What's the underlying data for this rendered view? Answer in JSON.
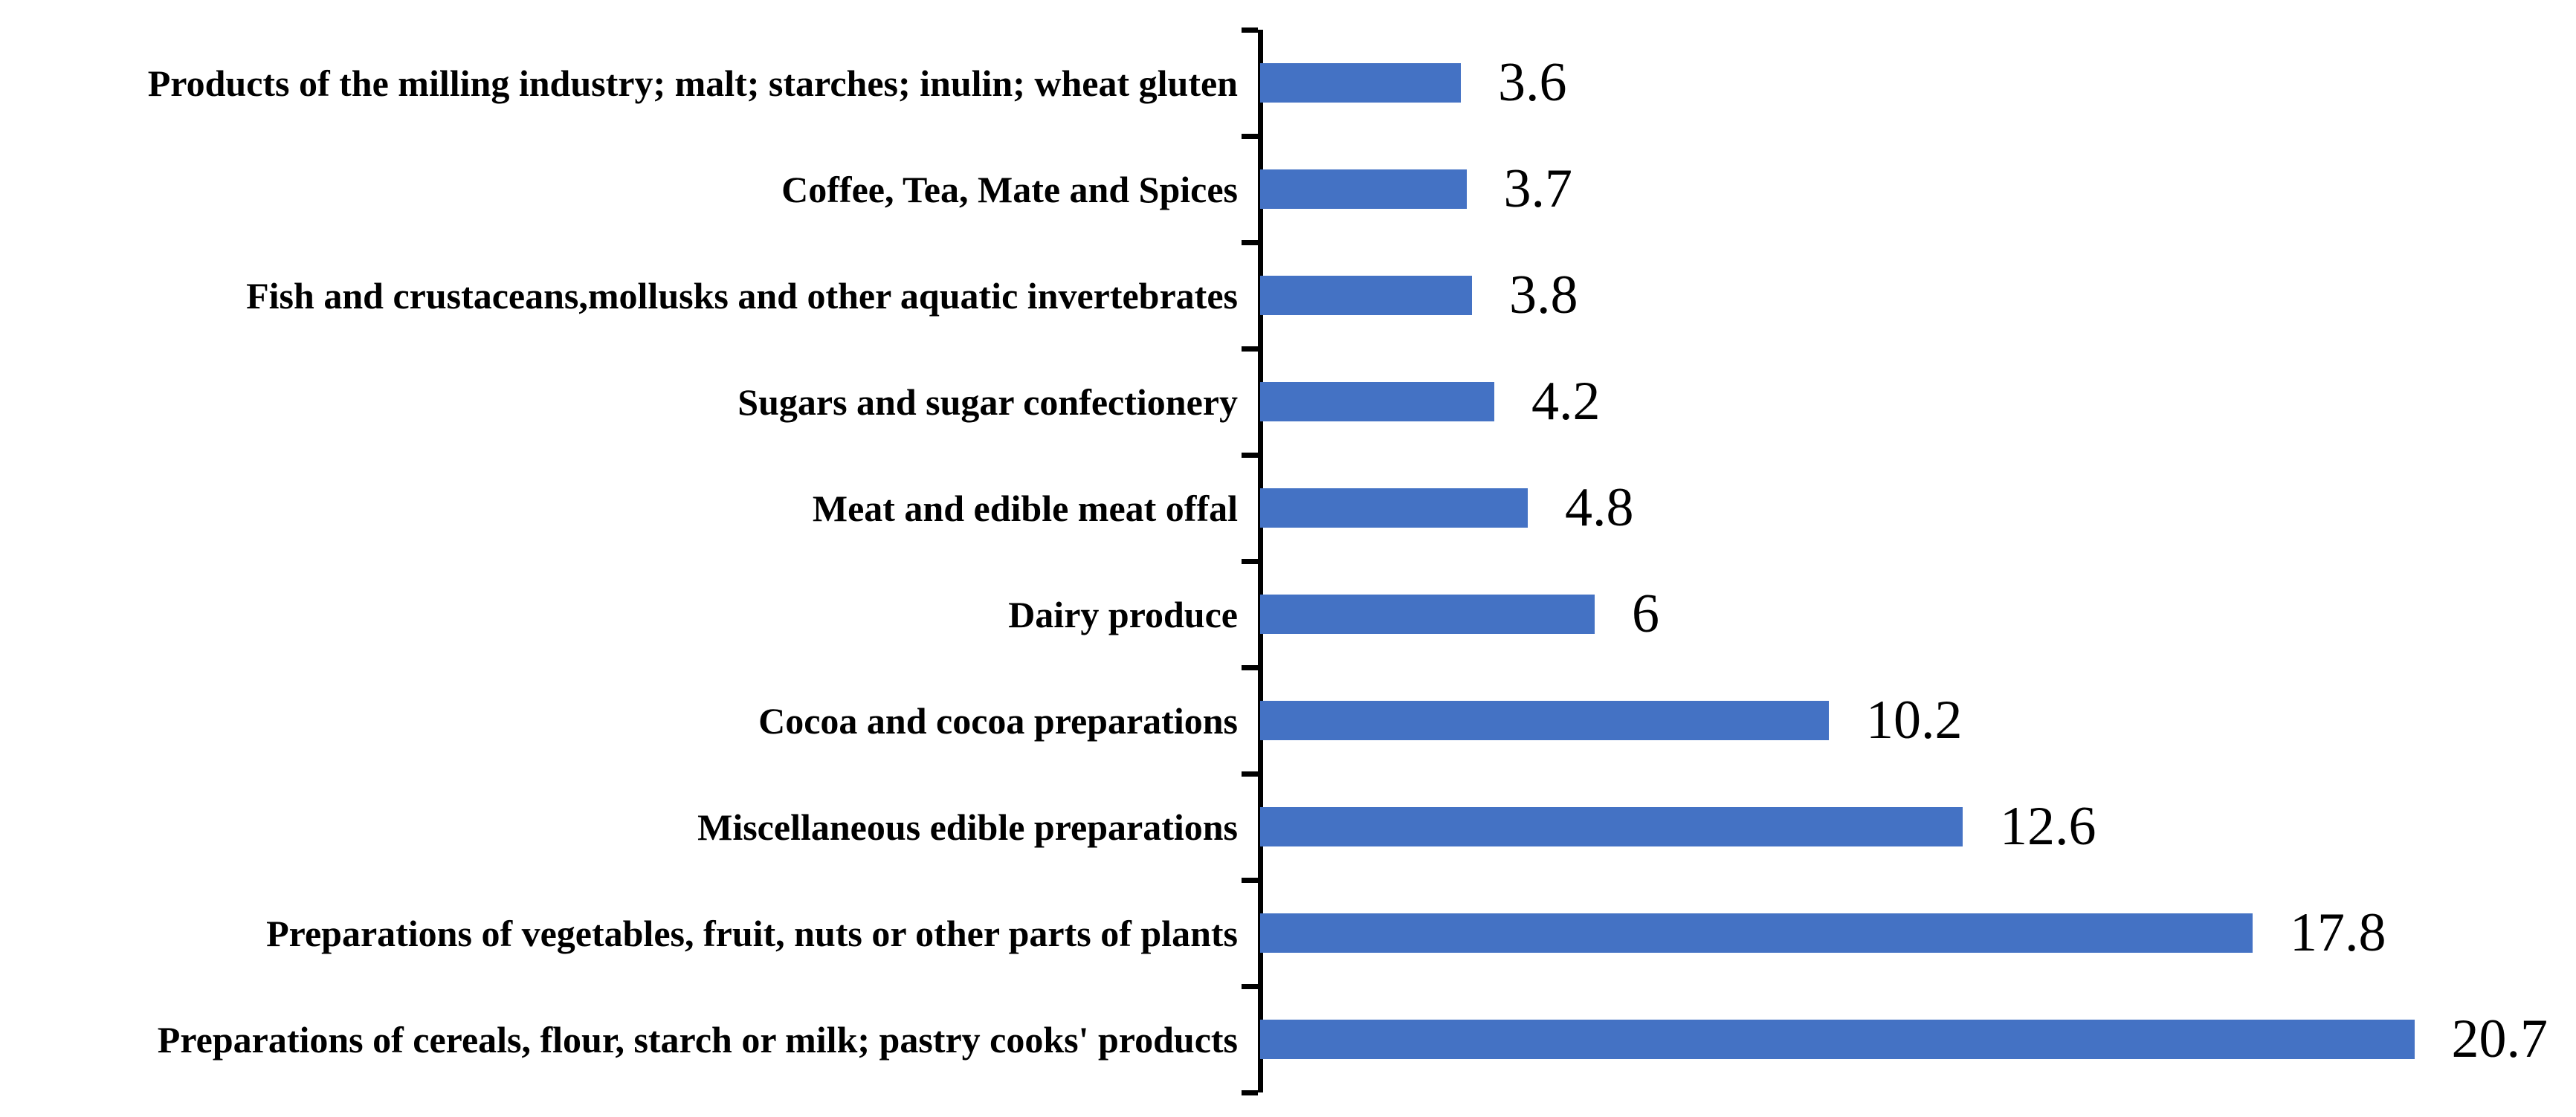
{
  "chart_data": {
    "type": "bar",
    "orientation": "horizontal",
    "title": "",
    "xlabel": "",
    "ylabel": "",
    "grid": false,
    "legend": false,
    "xlim": [
      0,
      21.5
    ],
    "bar_color": "#4472C4",
    "axis_color": "#000000",
    "text_color": "#000000",
    "categories": [
      "Products of the milling industry; malt; starches; inulin; wheat gluten",
      "Coffee, Tea, Mate and Spices",
      "Fish and crustaceans,mollusks and other aquatic invertebrates",
      "Sugars and sugar confectionery",
      "Meat and edible meat offal",
      "Dairy produce",
      "Cocoa and cocoa preparations",
      "Miscellaneous edible preparations",
      "Preparations of vegetables, fruit, nuts or other parts of plants",
      "Preparations of cereals, flour, starch or milk; pastry cooks' products"
    ],
    "values": [
      3.6,
      3.7,
      3.8,
      4.2,
      4.8,
      6,
      10.2,
      12.6,
      17.8,
      20.7
    ],
    "value_labels": [
      "3.6",
      "3.7",
      "3.8",
      "4.2",
      "4.8",
      "6",
      "10.2",
      "12.6",
      "17.8",
      "20.7"
    ]
  }
}
